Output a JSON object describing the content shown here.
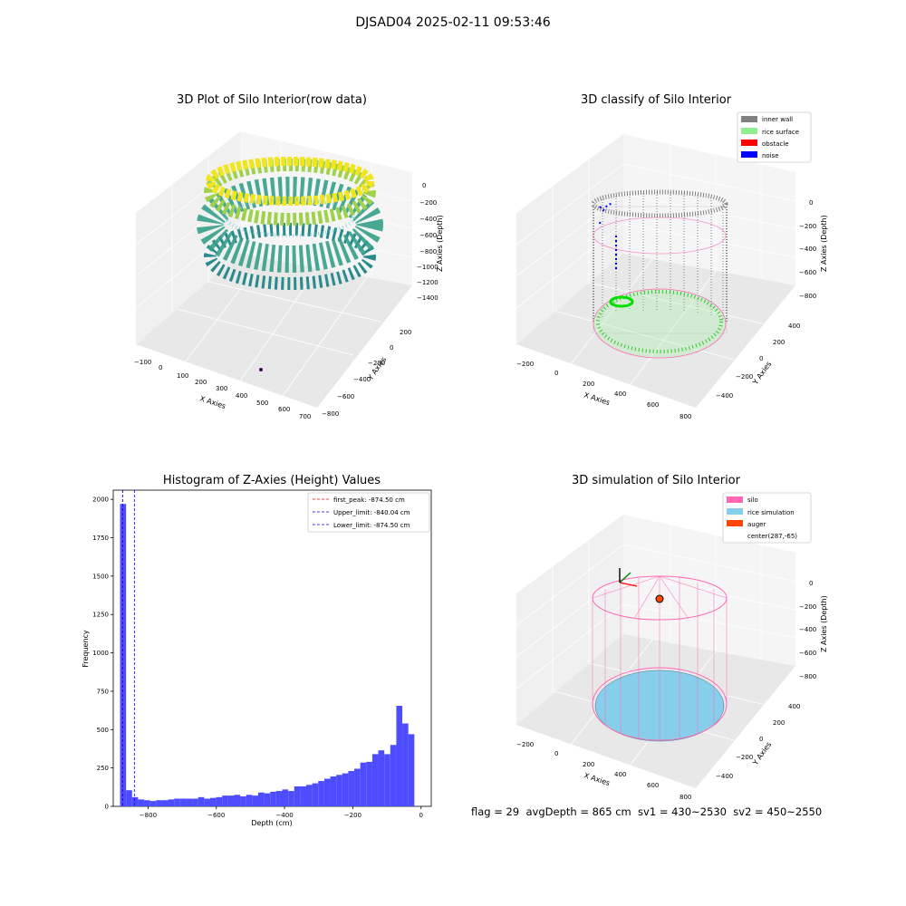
{
  "figure": {
    "suptitle": "DJSAD04 2025-02-11 09:53:46",
    "stats": "flag = 29  avgDepth = 865 cm  sv1 = 430~2530  sv2 = 450~2550"
  },
  "colors": {
    "inner_wall": "#808080",
    "rice_surface": "#90ee90",
    "obstacle": "#ff0000",
    "noise": "#0000ff",
    "silo": "#ff69b4",
    "rice_simulation": "#87ceeb",
    "auger": "#ff4500",
    "histogram_bar": "#4d4dff",
    "first_peak_line": "#ff0000",
    "limit_line": "#0000ff"
  },
  "chart_data": [
    {
      "type": "scatter",
      "title": "3D Plot of Silo Interior(row data)",
      "xlabel": "X Axies",
      "ylabel": "Y Axies",
      "zlabel": "Z Axies (Depth)",
      "xticks": [
        "−100",
        "0",
        "100",
        "200",
        "300",
        "400",
        "500",
        "600",
        "700"
      ],
      "yticks": [
        "−800",
        "−600",
        "−400",
        "−200",
        "0",
        "200"
      ],
      "zticks": [
        "0",
        "−200",
        "−400",
        "−600",
        "−800",
        "−1000",
        "−1200",
        "−1400"
      ]
    },
    {
      "type": "scatter",
      "title": "3D classify of Silo Interior",
      "xlabel": "X Axies",
      "ylabel": "Y Axies",
      "zlabel": "Z Axies (Depth)",
      "xticks": [
        "−200",
        "0",
        "200",
        "400",
        "600",
        "800"
      ],
      "yticks": [
        "−400",
        "−200",
        "0",
        "200",
        "400"
      ],
      "zticks": [
        "0",
        "−200",
        "−400",
        "−600",
        "−800"
      ],
      "legend": [
        "inner wall",
        "rice surface",
        "obstacle",
        "noise"
      ],
      "legend_loc": "top-right"
    },
    {
      "type": "bar",
      "title": "Histogram of Z-Axies (Height) Values",
      "xlabel": "Depth (cm)",
      "ylabel": "Frequency",
      "xlim": [
        -902,
        30
      ],
      "ylim": [
        0,
        2060
      ],
      "xticks": [
        -800,
        -600,
        -400,
        -200,
        0
      ],
      "xtick_labels": [
        "−800",
        "−600",
        "−400",
        "−200",
        "0"
      ],
      "yticks": [
        0,
        250,
        500,
        750,
        1000,
        1250,
        1500,
        1750,
        2000
      ],
      "bin_start": -882,
      "bin_width": 17.6,
      "values": [
        1970,
        105,
        60,
        45,
        40,
        35,
        40,
        40,
        45,
        50,
        50,
        50,
        50,
        60,
        50,
        55,
        60,
        70,
        70,
        75,
        65,
        75,
        70,
        90,
        85,
        95,
        100,
        110,
        100,
        130,
        130,
        140,
        150,
        165,
        180,
        195,
        205,
        215,
        230,
        245,
        285,
        290,
        340,
        365,
        340,
        400,
        655,
        540,
        470
      ],
      "lines": [
        {
          "label": "first_peak: -874.50 cm",
          "x": -874.5,
          "style": "red-dashed"
        },
        {
          "label": "Upper_limit: -840.04 cm",
          "x": -840.04,
          "style": "blue-dashed"
        },
        {
          "label": "Lower_limit: -874.50 cm",
          "x": -874.5,
          "style": "blue-dashed"
        }
      ],
      "legend_loc": "top-right"
    },
    {
      "type": "scatter",
      "title": "3D simulation of Silo Interior",
      "xlabel": "X Axies",
      "ylabel": "Y Axies",
      "zlabel": "Z Axies (Depth)",
      "xticks": [
        "−200",
        "0",
        "200",
        "400",
        "600",
        "800"
      ],
      "yticks": [
        "−400",
        "−200",
        "0",
        "200",
        "400"
      ],
      "zticks": [
        "0",
        "−200",
        "−400",
        "−600",
        "−800"
      ],
      "legend": [
        "silo",
        "rice simulation",
        "auger",
        "center(287,-65)"
      ],
      "legend_loc": "top-right"
    }
  ]
}
